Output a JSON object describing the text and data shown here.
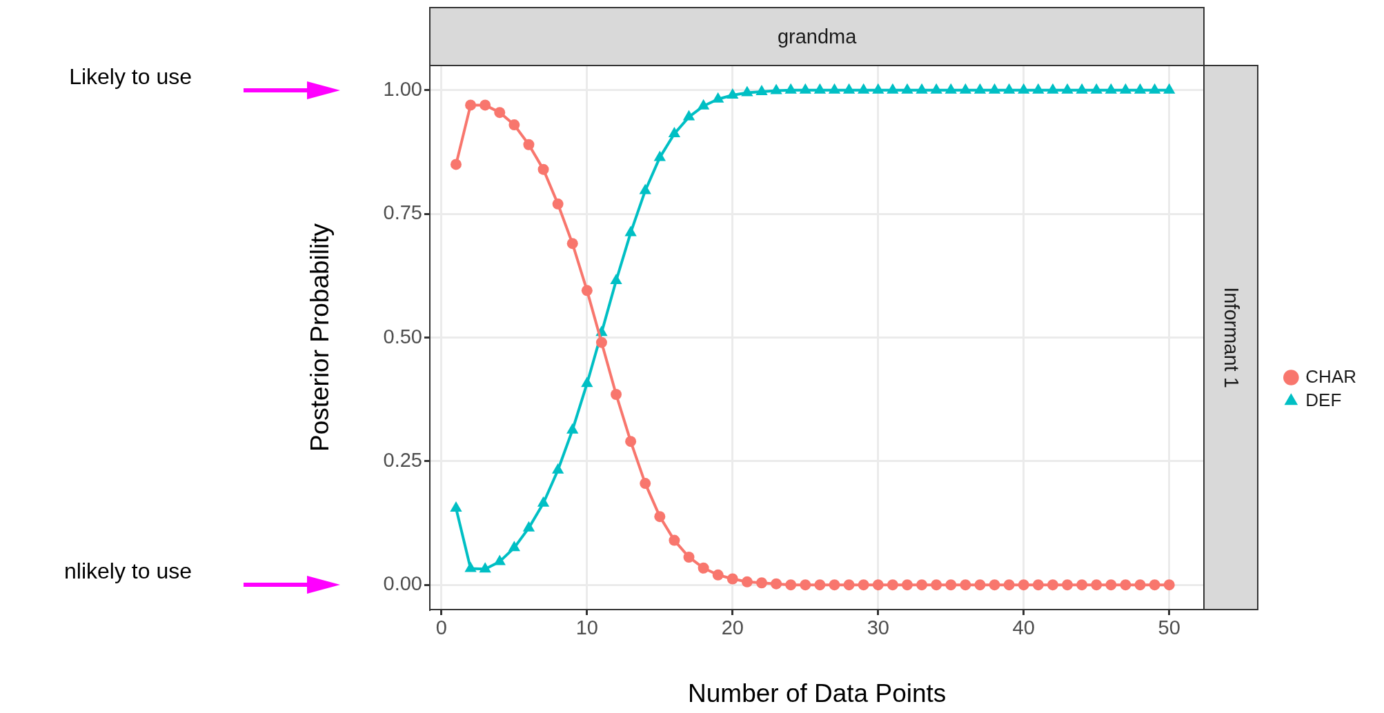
{
  "chart_data": {
    "type": "line",
    "title": "grandma",
    "xlabel": "Number of Data Points",
    "ylabel": "Posterior Probability",
    "x": [
      1,
      2,
      3,
      4,
      5,
      6,
      7,
      8,
      9,
      10,
      11,
      12,
      13,
      14,
      15,
      16,
      17,
      18,
      19,
      20,
      21,
      22,
      23,
      24,
      25,
      26,
      27,
      28,
      29,
      30,
      31,
      32,
      33,
      34,
      35,
      36,
      37,
      38,
      39,
      40,
      41,
      42,
      43,
      44,
      45,
      46,
      47,
      48,
      49,
      50
    ],
    "series": [
      {
        "name": "CHAR",
        "color": "#f8766d",
        "marker": "circle",
        "values": [
          0.85,
          0.97,
          0.97,
          0.955,
          0.93,
          0.89,
          0.84,
          0.77,
          0.69,
          0.595,
          0.49,
          0.385,
          0.29,
          0.205,
          0.138,
          0.09,
          0.056,
          0.034,
          0.02,
          0.012,
          0.006,
          0.004,
          0.002,
          0,
          0,
          0,
          0,
          0,
          0,
          0,
          0,
          0,
          0,
          0,
          0,
          0,
          0,
          0,
          0,
          0,
          0,
          0,
          0,
          0,
          0,
          0,
          0,
          0,
          0,
          0
        ]
      },
      {
        "name": "DEF",
        "color": "#00bfc4",
        "marker": "triangle",
        "values": [
          0.155,
          0.033,
          0.032,
          0.047,
          0.075,
          0.115,
          0.165,
          0.232,
          0.313,
          0.407,
          0.51,
          0.615,
          0.712,
          0.797,
          0.864,
          0.912,
          0.946,
          0.968,
          0.982,
          0.99,
          0.995,
          0.997,
          0.999,
          1,
          1,
          1,
          1,
          1,
          1,
          1,
          1,
          1,
          1,
          1,
          1,
          1,
          1,
          1,
          1,
          1,
          1,
          1,
          1,
          1,
          1,
          1,
          1,
          1,
          1,
          1
        ]
      }
    ],
    "xlim": [
      -0.8,
      52.4
    ],
    "xticks": [
      0,
      10,
      20,
      30,
      40,
      50
    ],
    "ylim": [
      -0.05,
      1.05
    ],
    "yticks": [
      {
        "value": 0,
        "label": "0.00"
      },
      {
        "value": 0.25,
        "label": "0.25"
      },
      {
        "value": 0.5,
        "label": "0.50"
      },
      {
        "value": 0.75,
        "label": "0.75"
      },
      {
        "value": 1,
        "label": "1.00"
      }
    ],
    "grid": true,
    "legend": "right",
    "annotations": [
      "Informant 1",
      "Likely to use",
      "nlikely to use"
    ]
  }
}
